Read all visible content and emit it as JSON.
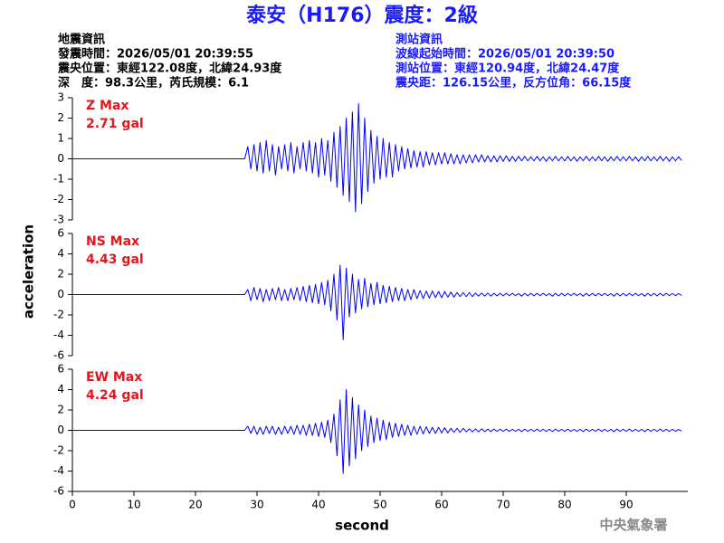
{
  "title": "泰安（H176）震度：2級",
  "quake_info": [
    "地震資訊",
    "發震時間：2026/05/01 20:39:55",
    "震央位置：東經122.08度，北緯24.93度",
    "深　度：98.3公里，芮氏規模：6.1"
  ],
  "station_info": [
    "測站資訊",
    "波線起始時間：2026/05/01 20:39:50",
    "測站位置：東經120.94度，北緯24.47度",
    "震央距：126.15公里，反方位角：66.15度"
  ],
  "ylabel": "acceleration",
  "footer": "中央氣象署",
  "chart_data": [
    {
      "type": "line",
      "label": "Z Max",
      "max_label": "2.71 gal",
      "color": "#0000ff",
      "xlim": [
        0,
        100
      ],
      "ylim": [
        -3,
        3
      ],
      "yticks": [
        -3,
        -2,
        -1,
        0,
        1,
        2,
        3
      ],
      "x": [
        0,
        28,
        28.5,
        29,
        29.5,
        30,
        30.5,
        31,
        31.5,
        32,
        32.5,
        33,
        33.5,
        34,
        34.5,
        35,
        35.5,
        36,
        36.5,
        37,
        37.5,
        38,
        38.5,
        39,
        39.5,
        40,
        40.5,
        41,
        41.5,
        42,
        42.5,
        43,
        43.5,
        44,
        44.5,
        45,
        45.5,
        46,
        46.5,
        47,
        47.5,
        48,
        48.5,
        49,
        49.5,
        50,
        50.5,
        51,
        51.5,
        52,
        52.5,
        53,
        53.5,
        54,
        54.5,
        55,
        55.5,
        56,
        56.5,
        57,
        57.5,
        58,
        58.5,
        59,
        59.5,
        60,
        60.5,
        61,
        61.5,
        62,
        62.5,
        63,
        63.5,
        64,
        64.5,
        65,
        65.5,
        66,
        66.5,
        67,
        67.5,
        68,
        68.5,
        69,
        69.5,
        70,
        70.5,
        71,
        71.5,
        72,
        72.5,
        73,
        73.5,
        74,
        74.5,
        75,
        75.5,
        76,
        76.5,
        77,
        77.5,
        78,
        78.5,
        79,
        79.5,
        80,
        80.5,
        81,
        81.5,
        82,
        82.5,
        83,
        83.5,
        84,
        84.5,
        85,
        85.5,
        86,
        86.5,
        87,
        87.5,
        88,
        88.5,
        89,
        89.5,
        90,
        90.5,
        91,
        91.5,
        92,
        92.5,
        93,
        93.5,
        94,
        94.5,
        95,
        95.5,
        96,
        96.5,
        97,
        97.5,
        98,
        98.5,
        99
      ],
      "values": [
        0,
        0,
        0.6,
        -0.5,
        0.7,
        -0.6,
        0.8,
        -0.7,
        0.9,
        -0.6,
        0.7,
        -0.8,
        0.6,
        -0.5,
        0.7,
        -0.6,
        0.8,
        -0.7,
        0.6,
        -0.5,
        0.8,
        -0.6,
        0.9,
        -0.7,
        0.8,
        -0.9,
        1.0,
        -0.8,
        0.9,
        -1.1,
        1.3,
        -1.4,
        1.6,
        -1.8,
        2.0,
        -2.1,
        2.3,
        -2.6,
        2.71,
        -2.2,
        2.0,
        -1.6,
        1.4,
        -1.2,
        1.1,
        -1.0,
        1.0,
        -0.9,
        0.8,
        -0.9,
        0.7,
        -0.6,
        0.6,
        -0.5,
        0.5,
        -0.45,
        0.4,
        -0.4,
        0.35,
        -0.4,
        0.35,
        -0.3,
        0.3,
        -0.3,
        0.3,
        -0.25,
        0.3,
        -0.25,
        0.25,
        -0.25,
        0.2,
        -0.25,
        0.2,
        -0.2,
        0.2,
        -0.2,
        0.2,
        -0.15,
        0.2,
        -0.15,
        0.15,
        -0.15,
        0.15,
        -0.15,
        0.15,
        -0.12,
        0.15,
        -0.12,
        0.12,
        -0.12,
        0.12,
        -0.1,
        0.12,
        -0.1,
        0.1,
        -0.1,
        0.12,
        -0.1,
        0.1,
        -0.12,
        0.1,
        -0.1,
        0.12,
        -0.1,
        0.1,
        -0.1,
        0.12,
        -0.1,
        0.1,
        -0.12,
        0.1,
        -0.1,
        0.12,
        -0.1,
        0.1,
        -0.1,
        0.12,
        -0.1,
        0.1,
        -0.12,
        0.1,
        -0.1,
        0.12,
        -0.1,
        0.1,
        -0.1,
        0.12,
        -0.1,
        0.1,
        -0.12,
        0.1,
        -0.1,
        0.12,
        -0.1,
        0.1,
        -0.1,
        0.12,
        -0.1,
        0.1,
        -0.12,
        0.1,
        -0.1,
        0.1,
        -0.08
      ]
    },
    {
      "type": "line",
      "label": "NS Max",
      "max_label": "4.43 gal",
      "color": "#0000ff",
      "xlim": [
        0,
        100
      ],
      "ylim": [
        -6,
        6
      ],
      "yticks": [
        -6,
        -4,
        -2,
        0,
        2,
        4,
        6
      ],
      "x": [
        0,
        28,
        28.5,
        29,
        29.5,
        30,
        30.5,
        31,
        31.5,
        32,
        32.5,
        33,
        33.5,
        34,
        34.5,
        35,
        35.5,
        36,
        36.5,
        37,
        37.5,
        38,
        38.5,
        39,
        39.5,
        40,
        40.5,
        41,
        41.5,
        42,
        42.5,
        43,
        43.5,
        44,
        44.5,
        45,
        45.5,
        46,
        46.5,
        47,
        47.5,
        48,
        48.5,
        49,
        49.5,
        50,
        50.5,
        51,
        51.5,
        52,
        52.5,
        53,
        53.5,
        54,
        54.5,
        55,
        55.5,
        56,
        56.5,
        57,
        57.5,
        58,
        58.5,
        59,
        59.5,
        60,
        60.5,
        61,
        61.5,
        62,
        62.5,
        63,
        63.5,
        64,
        64.5,
        65,
        65.5,
        66,
        66.5,
        67,
        67.5,
        68,
        68.5,
        69,
        69.5,
        70,
        70.5,
        71,
        71.5,
        72,
        72.5,
        73,
        73.5,
        74,
        74.5,
        75,
        75.5,
        76,
        76.5,
        77,
        77.5,
        78,
        78.5,
        79,
        79.5,
        80,
        80.5,
        81,
        81.5,
        82,
        82.5,
        83,
        83.5,
        84,
        84.5,
        85,
        85.5,
        86,
        86.5,
        87,
        87.5,
        88,
        88.5,
        89,
        89.5,
        90,
        90.5,
        91,
        91.5,
        92,
        92.5,
        93,
        93.5,
        94,
        94.5,
        95,
        95.5,
        96,
        96.5,
        97,
        97.5,
        98,
        98.5,
        99
      ],
      "values": [
        0,
        0,
        0.5,
        -0.6,
        0.7,
        -0.5,
        0.6,
        -0.7,
        0.5,
        -0.6,
        0.6,
        -0.5,
        0.7,
        -0.6,
        0.5,
        -0.6,
        0.6,
        -0.5,
        0.7,
        -0.6,
        0.8,
        -0.7,
        0.9,
        -0.8,
        1.0,
        -0.9,
        1.2,
        -1.0,
        1.4,
        -1.6,
        2.0,
        -2.5,
        2.9,
        -4.43,
        2.6,
        -2.2,
        2.0,
        -1.8,
        1.5,
        -1.4,
        1.6,
        -1.2,
        1.1,
        -1.0,
        1.2,
        -0.9,
        0.9,
        -0.8,
        0.8,
        -0.7,
        0.7,
        -0.6,
        0.6,
        -0.6,
        0.5,
        -0.5,
        0.5,
        -0.4,
        0.4,
        -0.4,
        0.35,
        -0.35,
        0.35,
        -0.3,
        0.3,
        -0.3,
        0.3,
        -0.25,
        0.25,
        -0.25,
        0.2,
        -0.2,
        0.2,
        -0.2,
        0.2,
        -0.2,
        0.15,
        -0.15,
        0.15,
        -0.15,
        0.15,
        -0.15,
        0.12,
        -0.12,
        0.12,
        -0.12,
        0.12,
        -0.1,
        0.12,
        -0.1,
        0.1,
        -0.15,
        0.12,
        -0.12,
        0.12,
        -0.12,
        0.12,
        -0.1,
        0.12,
        -0.1,
        0.1,
        -0.15,
        0.12,
        -0.12,
        0.12,
        -0.12,
        0.12,
        -0.1,
        0.12,
        -0.1,
        0.1,
        -0.15,
        0.12,
        -0.12,
        0.12,
        -0.12,
        0.12,
        -0.1,
        0.12,
        -0.1,
        0.1,
        -0.15,
        0.12,
        -0.12,
        0.12,
        -0.12,
        0.12,
        -0.1,
        0.12,
        -0.1,
        0.1,
        -0.15,
        0.12,
        -0.12,
        0.12,
        -0.12,
        0.12,
        -0.1,
        0.12,
        -0.1,
        0.1,
        -0.1,
        0.1,
        -0.08
      ]
    },
    {
      "type": "line",
      "label": "EW Max",
      "max_label": "4.24 gal",
      "color": "#0000ff",
      "xlim": [
        0,
        100
      ],
      "ylim": [
        -6,
        6
      ],
      "yticks": [
        -6,
        -4,
        -2,
        0,
        2,
        4,
        6
      ],
      "xticks": [
        0,
        10,
        20,
        30,
        40,
        50,
        60,
        70,
        80,
        90
      ],
      "xlabel": "second",
      "x": [
        0,
        28,
        28.5,
        29,
        29.5,
        30,
        30.5,
        31,
        31.5,
        32,
        32.5,
        33,
        33.5,
        34,
        34.5,
        35,
        35.5,
        36,
        36.5,
        37,
        37.5,
        38,
        38.5,
        39,
        39.5,
        40,
        40.5,
        41,
        41.5,
        42,
        42.5,
        43,
        43.5,
        44,
        44.5,
        45,
        45.5,
        46,
        46.5,
        47,
        47.5,
        48,
        48.5,
        49,
        49.5,
        50,
        50.5,
        51,
        51.5,
        52,
        52.5,
        53,
        53.5,
        54,
        54.5,
        55,
        55.5,
        56,
        56.5,
        57,
        57.5,
        58,
        58.5,
        59,
        59.5,
        60,
        60.5,
        61,
        61.5,
        62,
        62.5,
        63,
        63.5,
        64,
        64.5,
        65,
        65.5,
        66,
        66.5,
        67,
        67.5,
        68,
        68.5,
        69,
        69.5,
        70,
        70.5,
        71,
        71.5,
        72,
        72.5,
        73,
        73.5,
        74,
        74.5,
        75,
        75.5,
        76,
        76.5,
        77,
        77.5,
        78,
        78.5,
        79,
        79.5,
        80,
        80.5,
        81,
        81.5,
        82,
        82.5,
        83,
        83.5,
        84,
        84.5,
        85,
        85.5,
        86,
        86.5,
        87,
        87.5,
        88,
        88.5,
        89,
        89.5,
        90,
        90.5,
        91,
        91.5,
        92,
        92.5,
        93,
        93.5,
        94,
        94.5,
        95,
        95.5,
        96,
        96.5,
        97,
        97.5,
        98,
        98.5,
        99
      ],
      "values": [
        0,
        0,
        0.4,
        -0.3,
        0.4,
        -0.4,
        0.3,
        -0.4,
        0.4,
        -0.3,
        0.4,
        -0.4,
        0.3,
        -0.4,
        0.4,
        -0.3,
        0.4,
        -0.4,
        0.5,
        -0.4,
        0.5,
        -0.5,
        0.6,
        -0.5,
        0.7,
        -0.6,
        0.8,
        -0.7,
        1.0,
        -1.2,
        1.6,
        -2.5,
        3.0,
        -4.24,
        4.0,
        -3.5,
        3.2,
        -2.8,
        2.5,
        -2.0,
        2.0,
        -1.6,
        1.4,
        -1.2,
        1.2,
        -1.0,
        1.0,
        -0.9,
        0.8,
        -0.7,
        0.7,
        -0.6,
        0.6,
        -0.5,
        0.5,
        -0.5,
        0.4,
        -0.4,
        0.4,
        -0.35,
        0.35,
        -0.3,
        0.3,
        -0.3,
        0.3,
        -0.25,
        0.25,
        -0.25,
        0.2,
        -0.2,
        0.2,
        -0.2,
        0.2,
        -0.15,
        0.15,
        -0.15,
        0.15,
        -0.15,
        0.15,
        -0.12,
        0.12,
        -0.12,
        0.12,
        -0.1,
        0.1,
        -0.1,
        0.12,
        -0.1,
        0.1,
        -0.1,
        0.1,
        -0.12,
        0.12,
        -0.1,
        0.1,
        -0.1,
        0.12,
        -0.1,
        0.1,
        -0.1,
        0.1,
        -0.12,
        0.12,
        -0.1,
        0.1,
        -0.1,
        0.12,
        -0.1,
        0.1,
        -0.1,
        0.1,
        -0.12,
        0.12,
        -0.1,
        0.1,
        -0.1,
        0.12,
        -0.1,
        0.1,
        -0.1,
        0.1,
        -0.12,
        0.12,
        -0.1,
        0.1,
        -0.1,
        0.12,
        -0.1,
        0.1,
        -0.1,
        0.1,
        -0.12,
        0.12,
        -0.1,
        0.1,
        -0.1,
        0.12,
        -0.1,
        0.1,
        -0.1,
        0.1,
        -0.1,
        0.08,
        -0.08
      ]
    }
  ]
}
